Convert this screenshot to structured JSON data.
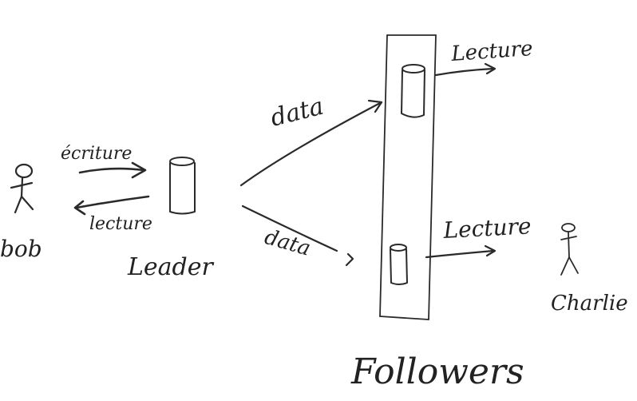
{
  "users": {
    "bob": "bob",
    "charlie": "Charlie"
  },
  "leader": {
    "label": "Leader",
    "write_label": "écriture",
    "read_label": "lecture"
  },
  "followers": {
    "label": "Followers",
    "top": {
      "data_label": "data",
      "read_label": "Lecture"
    },
    "bottom": {
      "data_label": "data",
      "read_label": "Lecture"
    }
  },
  "colors": {
    "ink": "#2a2a2a",
    "background": "#ffffff"
  }
}
